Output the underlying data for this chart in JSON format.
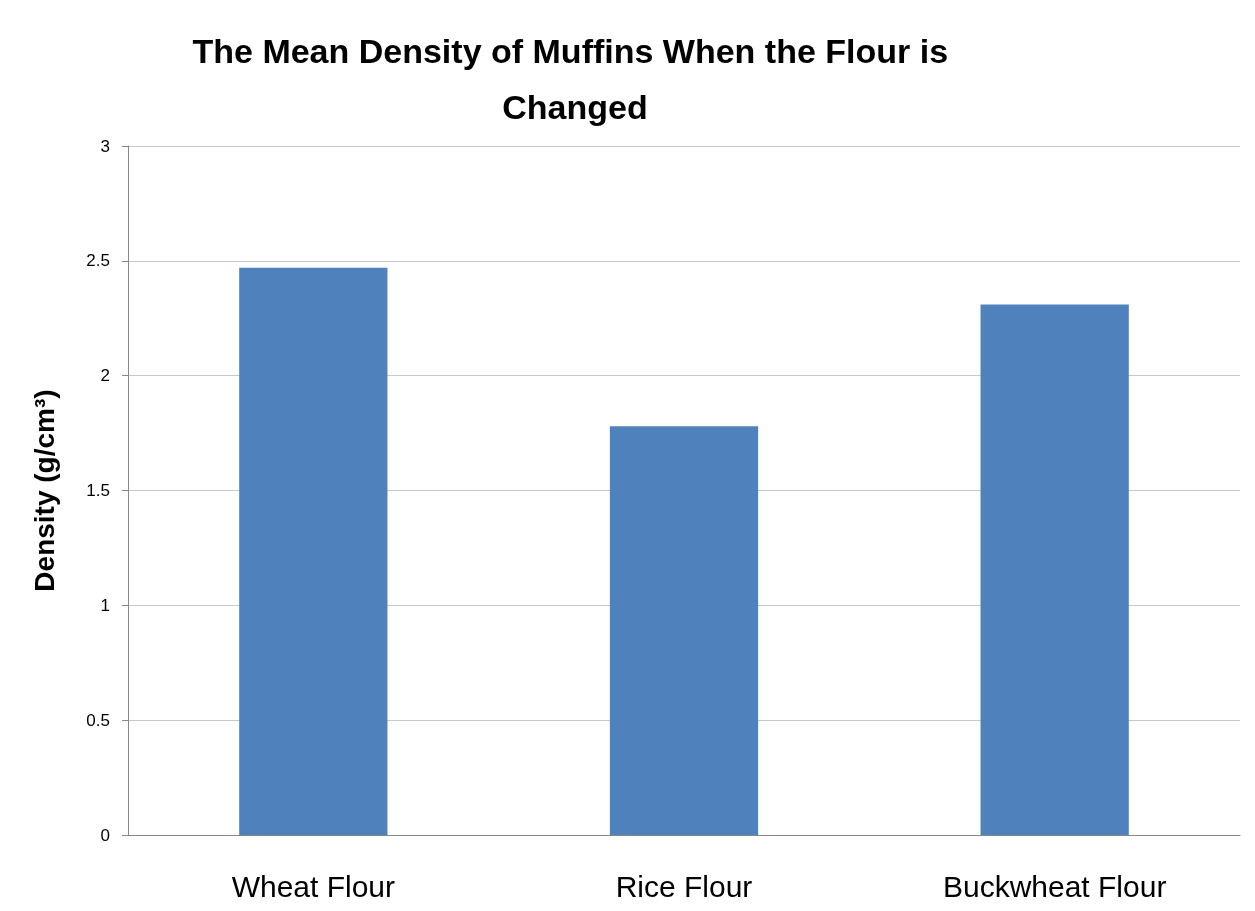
{
  "chart_data": {
    "type": "bar",
    "title": "The Mean Density of Muffins When the Flour is Changed",
    "ylabel": "Density (g/cm³)",
    "categories": [
      "Wheat Flour",
      "Rice Flour",
      "Buckwheat Flour"
    ],
    "values": [
      2.47,
      1.78,
      2.31
    ],
    "color": "#4f81bd",
    "ylim": [
      0,
      3
    ],
    "yticks": [
      0,
      0.5,
      1,
      1.5,
      2,
      2.5,
      3
    ],
    "grid": "y"
  }
}
